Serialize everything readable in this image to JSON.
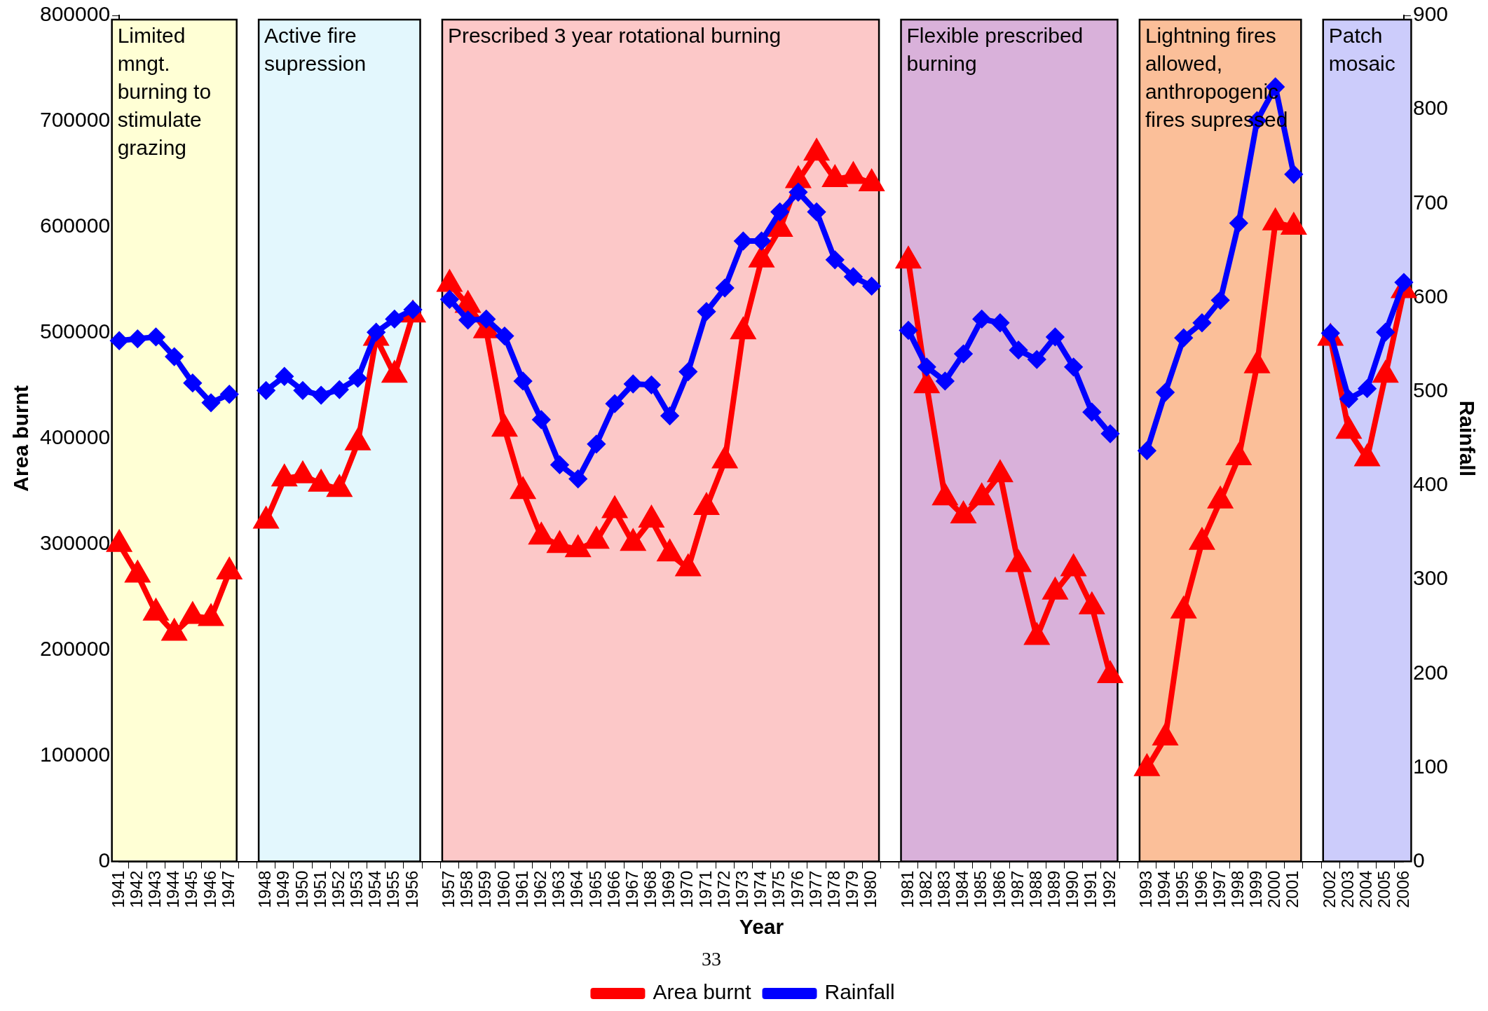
{
  "chart_data": {
    "type": "line",
    "xlabel": "Year",
    "ylabel": "Area burnt",
    "y2label": "Rainfall",
    "categories": [
      "1941",
      "1942",
      "1943",
      "1944",
      "1945",
      "1946",
      "1947",
      null,
      "1948",
      "1949",
      "1950",
      "1951",
      "1952",
      "1953",
      "1954",
      "1955",
      "1956",
      null,
      "1957",
      "1958",
      "1959",
      "1960",
      "1961",
      "1962",
      "1963",
      "1964",
      "1965",
      "1966",
      "1967",
      "1968",
      "1969",
      "1970",
      "1971",
      "1972",
      "1973",
      "1974",
      "1975",
      "1976",
      "1977",
      "1978",
      "1979",
      "1980",
      null,
      "1981",
      "1982",
      "1983",
      "1984",
      "1985",
      "1986",
      "1987",
      "1988",
      "1989",
      "1990",
      "1991",
      "1992",
      null,
      "1993",
      "1994",
      "1995",
      "1996",
      "1997",
      "1998",
      "1999",
      "2000",
      "2001",
      null,
      "2002",
      "2003",
      "2004",
      "2005",
      "2006"
    ],
    "series": [
      {
        "name": "Area burnt",
        "color": "#ff0000",
        "marker": "triangle",
        "values": [
          300000,
          271000,
          235000,
          216000,
          232000,
          230000,
          274000,
          null,
          322000,
          362000,
          365000,
          357000,
          352000,
          396000,
          495000,
          460000,
          517000,
          null,
          546000,
          526000,
          502000,
          409000,
          350000,
          307000,
          299000,
          295000,
          303000,
          332000,
          301000,
          323000,
          291000,
          277000,
          335000,
          379000,
          501000,
          569000,
          598000,
          644000,
          670000,
          645000,
          648000,
          641000,
          null,
          568000,
          450000,
          344000,
          327000,
          344000,
          366000,
          281000,
          212000,
          255000,
          277000,
          241000,
          176000,
          null,
          88000,
          117000,
          237000,
          302000,
          341000,
          382000,
          469000,
          604000,
          600000,
          null,
          495000,
          407000,
          381000,
          460000,
          540000
        ]
      },
      {
        "name": "Rainfall",
        "color": "#0000ff",
        "marker": "diamond",
        "axis": "y2",
        "values": [
          554,
          556,
          558,
          537,
          509,
          488,
          497,
          null,
          501,
          516,
          501,
          496,
          502,
          514,
          563,
          577,
          587,
          null,
          598,
          576,
          577,
          559,
          511,
          470,
          422,
          407,
          444,
          487,
          508,
          507,
          474,
          521,
          585,
          610,
          660,
          660,
          691,
          712,
          691,
          640,
          622,
          612,
          null,
          565,
          526,
          511,
          540,
          577,
          573,
          544,
          534,
          558,
          526,
          478,
          455,
          null,
          437,
          499,
          557,
          573,
          597,
          679,
          788,
          824,
          731,
          null,
          562,
          492,
          503,
          563,
          616
        ]
      }
    ],
    "ylim": [
      0,
      800000
    ],
    "yticks": [
      0,
      100000,
      200000,
      300000,
      400000,
      500000,
      600000,
      700000,
      800000
    ],
    "y2lim": [
      0,
      900
    ],
    "y2ticks": [
      0,
      100,
      200,
      300,
      400,
      500,
      600,
      700,
      800,
      900
    ],
    "bands": [
      {
        "axis": "x",
        "from": "1941",
        "to": "1947",
        "label": "Limited mngt. burning to stimulate grazing",
        "color": "#ffffd5"
      },
      {
        "axis": "x",
        "from": "1948",
        "to": "1956",
        "label": "Active fire supression",
        "color": "#e3f7fd"
      },
      {
        "axis": "x",
        "from": "1957",
        "to": "1980",
        "label": "Prescribed 3 year rotational burning",
        "color": "#fcc8c8"
      },
      {
        "axis": "x",
        "from": "1981",
        "to": "1992",
        "label": "Flexible prescribed burning",
        "color": "#d9b1da"
      },
      {
        "axis": "x",
        "from": "1993",
        "to": "2001",
        "label": "Lightning fires allowed, anthropogenic fires supressed",
        "color": "#fbbf99"
      },
      {
        "axis": "x",
        "from": "2002",
        "to": "2006",
        "label": "Patch mosaic",
        "color": "#ccccfb"
      }
    ],
    "annotations": [
      "33"
    ],
    "grid": false,
    "legend": "bottom"
  }
}
